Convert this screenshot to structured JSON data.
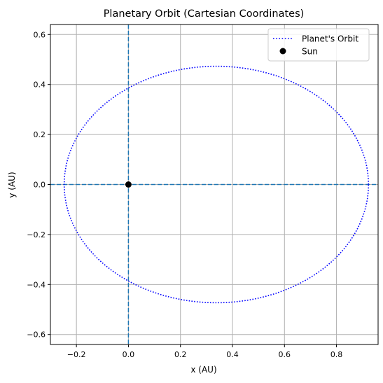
{
  "chart_data": {
    "type": "line",
    "title": "Planetary Orbit (Cartesian Coordinates)",
    "xlabel": "x (AU)",
    "ylabel": "y (AU)",
    "xlim": [
      -0.3,
      0.96
    ],
    "ylim": [
      -0.64,
      0.64
    ],
    "xticks": [
      -0.2,
      0.0,
      0.2,
      0.4,
      0.6,
      0.8
    ],
    "xtick_labels": [
      "−0.2",
      "0.0",
      "0.2",
      "0.4",
      "0.6",
      "0.8"
    ],
    "yticks": [
      -0.6,
      -0.4,
      -0.2,
      0.0,
      0.2,
      0.4,
      0.6
    ],
    "ytick_labels": [
      "−0.6",
      "−0.4",
      "−0.2",
      "0.0",
      "0.2",
      "0.4",
      "0.6"
    ],
    "grid": true,
    "legend_position": "top-right",
    "series": [
      {
        "name": "Planet's Orbit",
        "kind": "ellipse",
        "linestyle": "dotted",
        "color": "#0000ff",
        "center": [
          0.338,
          0.0
        ],
        "semi_major_axis": 0.585,
        "semi_minor_axis": 0.473,
        "x_extent": [
          -0.247,
          0.923
        ],
        "y_extent": [
          -0.473,
          0.473
        ]
      },
      {
        "name": "Sun",
        "kind": "scatter",
        "color": "#000000",
        "x": [
          0.0
        ],
        "y": [
          0.0
        ]
      }
    ],
    "reference_lines": [
      {
        "orientation": "vertical",
        "x": 0.0,
        "color": "#1f77b4",
        "linestyle": "dashed"
      },
      {
        "orientation": "horizontal",
        "y": 0.0,
        "color": "#1f77b4",
        "linestyle": "dashed"
      }
    ]
  }
}
